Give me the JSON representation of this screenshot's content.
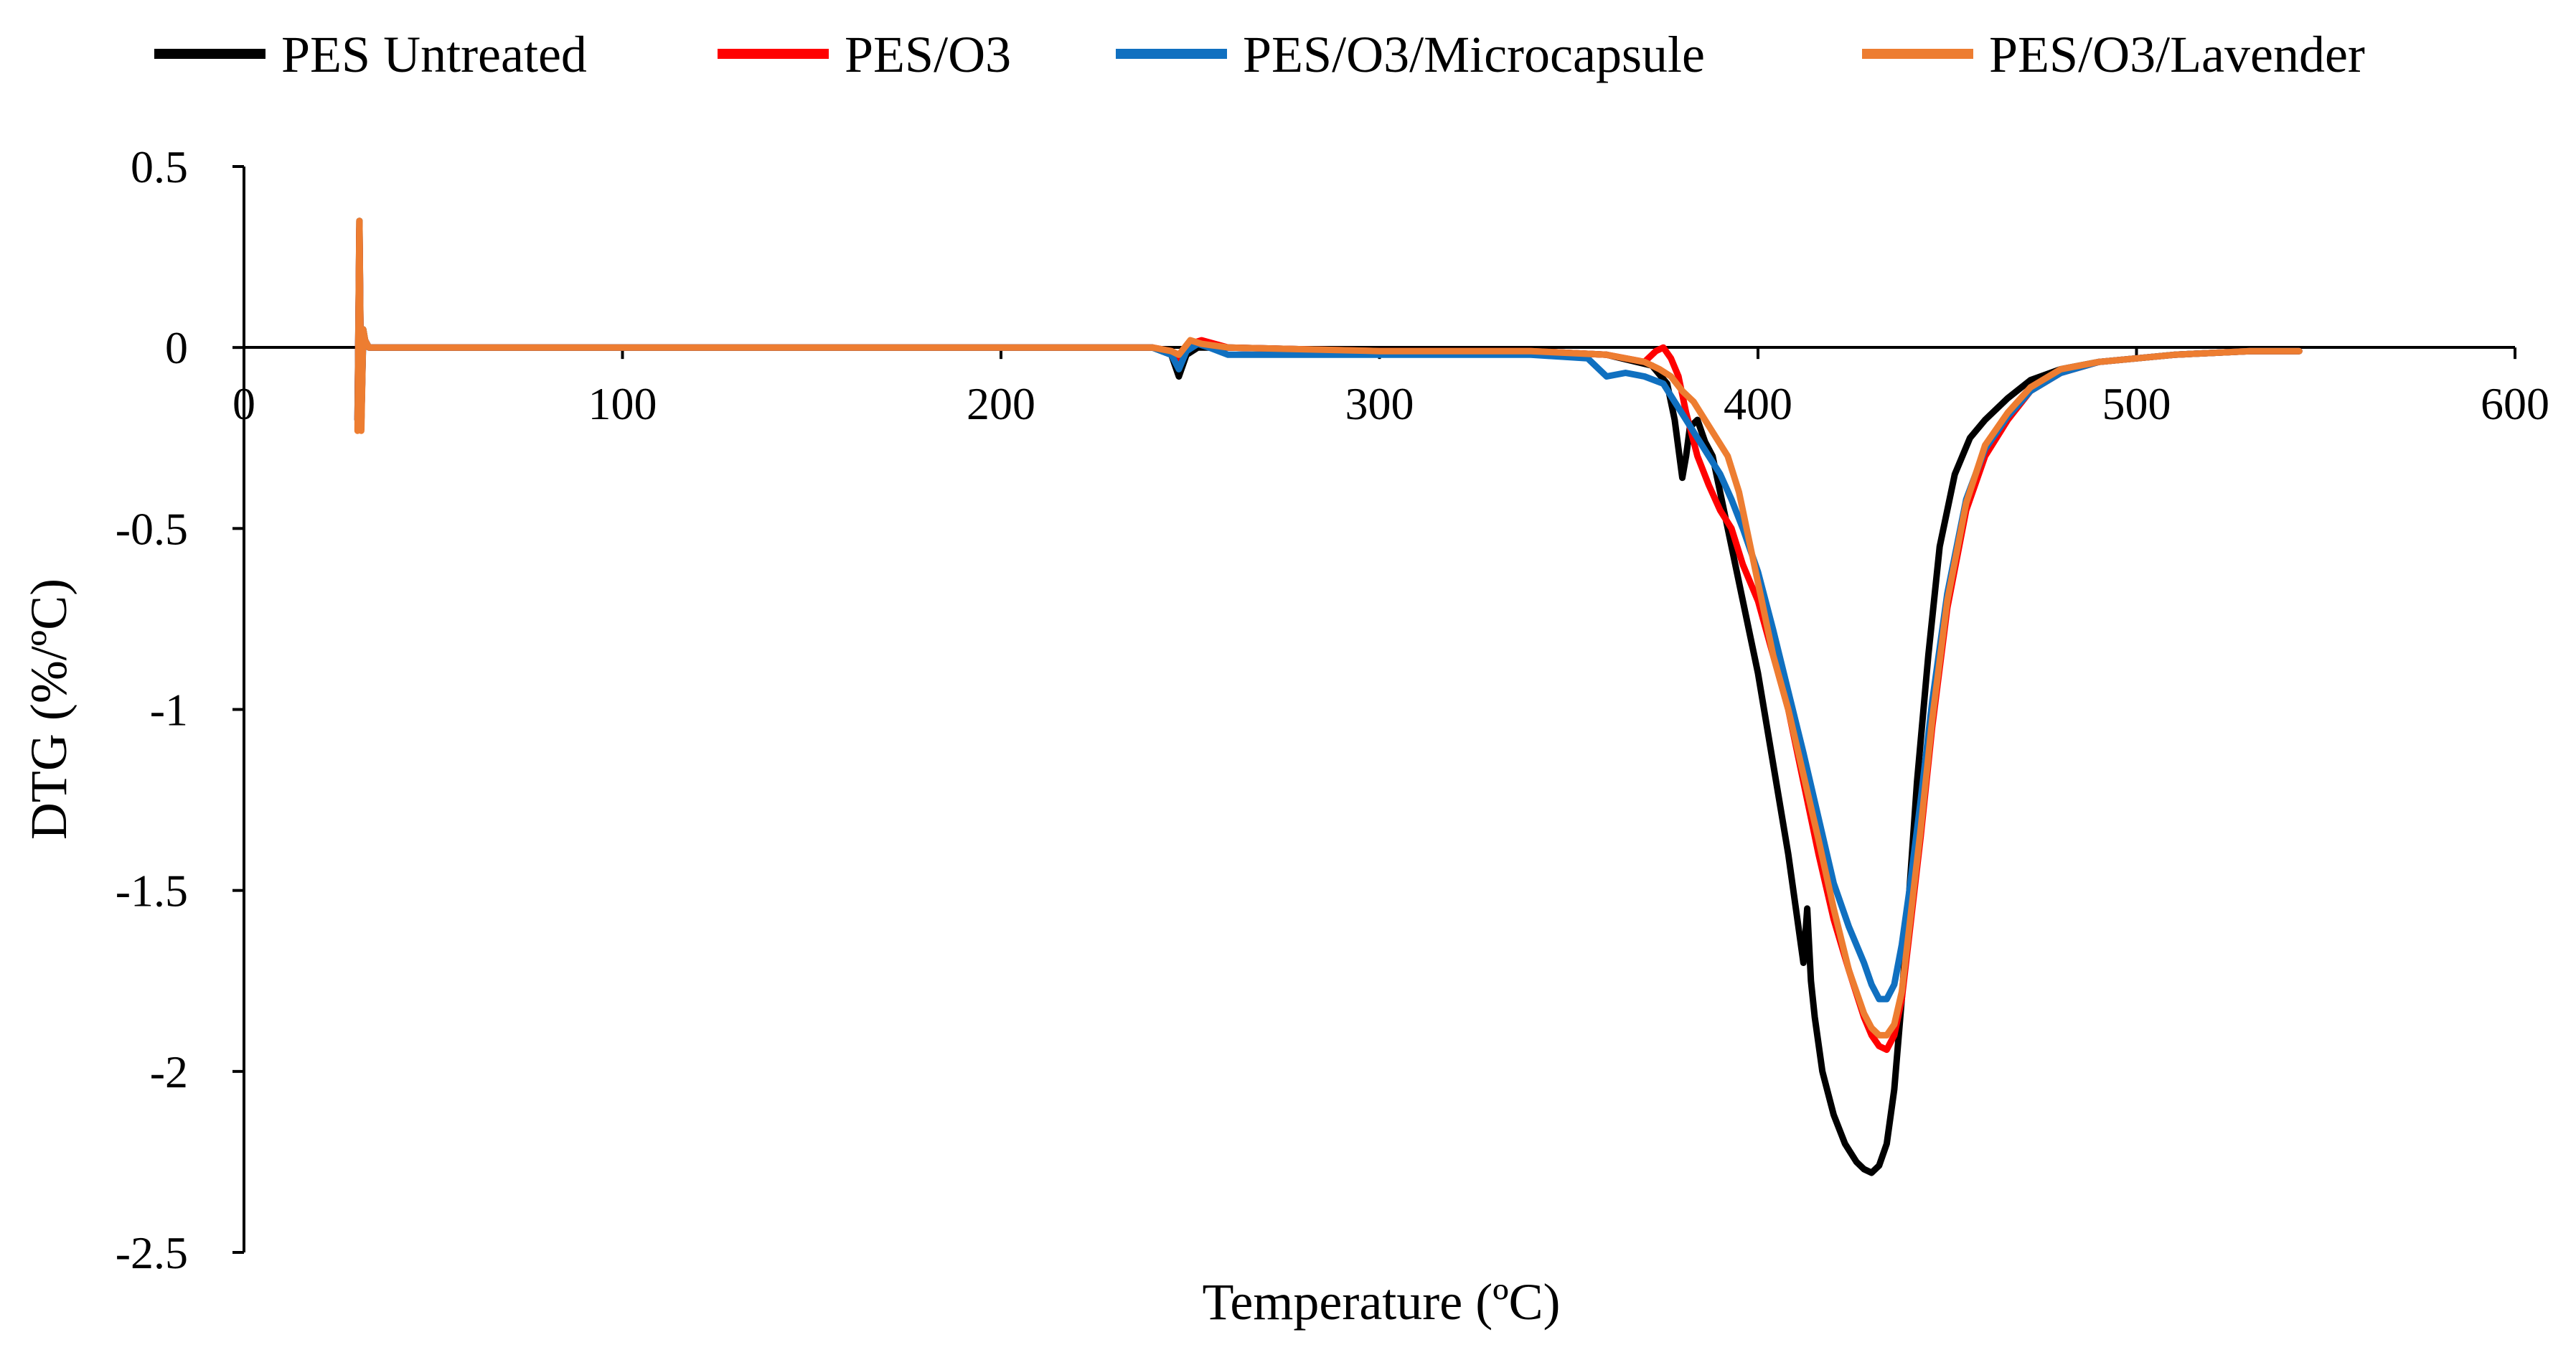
{
  "chart_data": {
    "type": "line",
    "title": "",
    "xlabel": "Temperature (ºC)",
    "ylabel": "DTG (%/ºC)",
    "xlim": [
      0,
      600
    ],
    "ylim": [
      -2.5,
      0.5
    ],
    "xticks": [
      "0",
      "100",
      "200",
      "300",
      "400",
      "500",
      "600"
    ],
    "yticks": [
      "0.5",
      "0",
      "-0.5",
      "-1",
      "-1.5",
      "-2",
      "-2.5"
    ],
    "grid": false,
    "legend_position": "top",
    "series": [
      {
        "name": "PES Untreated",
        "color": "#000000",
        "x": [
          30,
          30.5,
          31,
          31.5,
          32,
          33,
          35,
          40,
          60,
          100,
          150,
          200,
          240,
          245,
          247,
          249,
          252,
          260,
          300,
          340,
          360,
          372,
          376,
          378,
          380,
          381,
          382,
          384,
          386,
          388,
          390,
          393,
          396,
          400,
          404,
          408,
          410,
          412,
          413,
          414,
          415,
          417,
          420,
          423,
          426,
          428,
          430,
          432,
          434,
          436,
          438,
          440,
          442,
          445,
          448,
          452,
          456,
          460,
          466,
          472,
          480,
          490,
          500,
          510,
          520,
          530,
          543
        ],
        "y": [
          -0.2,
          0.35,
          -0.2,
          0.05,
          0.02,
          0,
          0,
          0,
          0,
          0,
          0,
          0,
          0,
          -0.02,
          -0.08,
          -0.02,
          0,
          0,
          -0.01,
          -0.01,
          -0.02,
          -0.05,
          -0.1,
          -0.2,
          -0.36,
          -0.3,
          -0.22,
          -0.2,
          -0.26,
          -0.3,
          -0.4,
          -0.55,
          -0.7,
          -0.9,
          -1.15,
          -1.4,
          -1.55,
          -1.7,
          -1.55,
          -1.75,
          -1.85,
          -2.0,
          -2.12,
          -2.2,
          -2.25,
          -2.27,
          -2.28,
          -2.26,
          -2.2,
          -2.05,
          -1.8,
          -1.5,
          -1.2,
          -0.85,
          -0.55,
          -0.35,
          -0.25,
          -0.2,
          -0.14,
          -0.09,
          -0.06,
          -0.04,
          -0.03,
          -0.02,
          -0.015,
          -0.01,
          -0.01
        ]
      },
      {
        "name": "PES/O3",
        "color": "#ff0000",
        "x": [
          30,
          30.5,
          31,
          31.5,
          32,
          33,
          35,
          40,
          60,
          100,
          150,
          200,
          240,
          245,
          247,
          250,
          253,
          260,
          300,
          340,
          360,
          370,
          373,
          375,
          377,
          379,
          381,
          384,
          387,
          390,
          393,
          396,
          400,
          404,
          408,
          412,
          416,
          420,
          424,
          428,
          430,
          432,
          434,
          436,
          438,
          440,
          443,
          446,
          450,
          455,
          460,
          466,
          472,
          480,
          490,
          500,
          510,
          520,
          530,
          543
        ],
        "y": [
          -0.2,
          0.33,
          -0.2,
          0.04,
          0.02,
          0,
          0,
          0,
          0,
          0,
          0,
          0,
          0,
          -0.01,
          -0.03,
          0.01,
          0.02,
          0,
          -0.01,
          -0.01,
          -0.02,
          -0.04,
          -0.01,
          0,
          -0.03,
          -0.08,
          -0.18,
          -0.3,
          -0.38,
          -0.45,
          -0.5,
          -0.6,
          -0.7,
          -0.85,
          -1.0,
          -1.2,
          -1.4,
          -1.58,
          -1.72,
          -1.85,
          -1.9,
          -1.93,
          -1.94,
          -1.9,
          -1.8,
          -1.62,
          -1.35,
          -1.05,
          -0.72,
          -0.45,
          -0.3,
          -0.2,
          -0.12,
          -0.07,
          -0.04,
          -0.03,
          -0.02,
          -0.015,
          -0.01,
          -0.01
        ]
      },
      {
        "name": "PES/O3/Microcapsule",
        "color": "#1070c0",
        "x": [
          30,
          30.5,
          31,
          31.5,
          32,
          33,
          35,
          40,
          60,
          100,
          150,
          200,
          240,
          245,
          247,
          249,
          252,
          255,
          260,
          300,
          340,
          355,
          360,
          365,
          370,
          375,
          378,
          381,
          384,
          387,
          390,
          393,
          396,
          400,
          404,
          408,
          412,
          416,
          420,
          424,
          428,
          430,
          432,
          434,
          436,
          438,
          440,
          443,
          446,
          450,
          455,
          460,
          466,
          472,
          480,
          490,
          500,
          510,
          520,
          530,
          543
        ],
        "y": [
          -0.2,
          0.3,
          -0.2,
          0.03,
          0.02,
          0,
          0,
          0,
          0,
          0,
          0,
          0,
          0,
          -0.02,
          -0.06,
          -0.01,
          0.01,
          0,
          -0.02,
          -0.02,
          -0.02,
          -0.03,
          -0.08,
          -0.07,
          -0.08,
          -0.1,
          -0.15,
          -0.2,
          -0.25,
          -0.3,
          -0.35,
          -0.42,
          -0.5,
          -0.62,
          -0.78,
          -0.95,
          -1.12,
          -1.3,
          -1.48,
          -1.6,
          -1.7,
          -1.76,
          -1.8,
          -1.8,
          -1.76,
          -1.65,
          -1.5,
          -1.25,
          -0.98,
          -0.68,
          -0.42,
          -0.28,
          -0.19,
          -0.12,
          -0.07,
          -0.04,
          -0.03,
          -0.02,
          -0.015,
          -0.01,
          -0.01
        ]
      },
      {
        "name": "PES/O3/Lavender",
        "color": "#ed7d31",
        "x": [
          30,
          30.5,
          31,
          31.5,
          32,
          33,
          35,
          40,
          60,
          100,
          150,
          200,
          240,
          245,
          247,
          250,
          253,
          260,
          300,
          340,
          360,
          370,
          374,
          377,
          380,
          383,
          386,
          389,
          392,
          395,
          398,
          401,
          404,
          408,
          412,
          416,
          420,
          424,
          428,
          430,
          432,
          434,
          436,
          438,
          440,
          443,
          446,
          450,
          455,
          460,
          466,
          472,
          480,
          490,
          500,
          510,
          520,
          530,
          543
        ],
        "y": [
          -0.23,
          0.35,
          -0.23,
          0.05,
          0.02,
          0,
          0,
          0,
          0,
          0,
          0,
          0,
          0,
          -0.01,
          -0.02,
          0.02,
          0.01,
          0,
          -0.01,
          -0.01,
          -0.02,
          -0.04,
          -0.06,
          -0.08,
          -0.12,
          -0.15,
          -0.2,
          -0.25,
          -0.3,
          -0.4,
          -0.55,
          -0.7,
          -0.85,
          -1.0,
          -1.18,
          -1.36,
          -1.55,
          -1.72,
          -1.84,
          -1.88,
          -1.9,
          -1.9,
          -1.87,
          -1.78,
          -1.6,
          -1.33,
          -1.03,
          -0.7,
          -0.43,
          -0.27,
          -0.18,
          -0.11,
          -0.06,
          -0.04,
          -0.03,
          -0.02,
          -0.015,
          -0.01,
          -0.01
        ]
      }
    ]
  }
}
